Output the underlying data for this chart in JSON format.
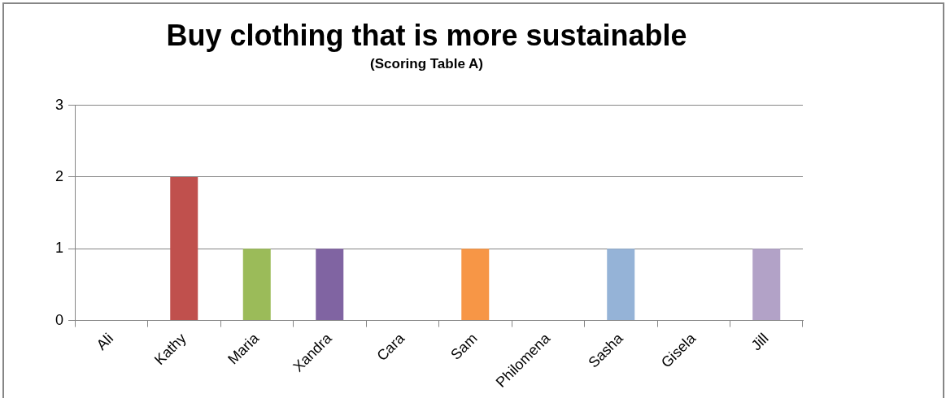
{
  "chart_data": {
    "type": "bar",
    "title": "Buy clothing that is more sustainable",
    "subtitle": "(Scoring Table A)",
    "categories": [
      "Ali",
      "Kathy",
      "Maria",
      "Xandra",
      "Cara",
      "Sam",
      "Philomena",
      "Sasha",
      "Gisela",
      "Jill"
    ],
    "values": [
      0,
      2,
      1,
      1,
      0,
      1,
      0,
      1,
      0,
      1
    ],
    "colors": [
      "#4f81bd",
      "#c0504d",
      "#9bbb59",
      "#8064a2",
      "#4bacc6",
      "#f79646",
      "#2c4d75",
      "#95b3d7",
      "#772c2a",
      "#b2a2c7"
    ],
    "ylim": [
      0,
      3
    ],
    "yticks": [
      0,
      1,
      2,
      3
    ],
    "grid": "y",
    "legend": false
  }
}
